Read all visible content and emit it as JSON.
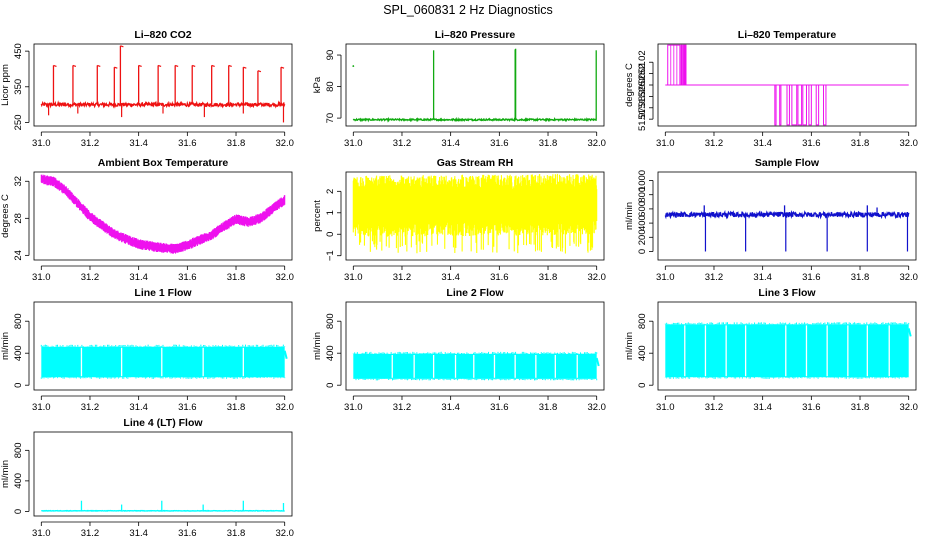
{
  "title": "SPL_060831  2 Hz Diagnostics",
  "chart_data": [
    {
      "id": "p1",
      "type": "line",
      "title": "Li–820 CO2",
      "ylabel": "Licor ppm",
      "color": "#ee1111",
      "xlim": [
        30.97,
        32.03
      ],
      "ylim": [
        240,
        470
      ],
      "xticks": [
        31.0,
        31.2,
        31.4,
        31.6,
        31.8,
        32.0
      ],
      "xtick_labels": [
        "31.0",
        "31.2",
        "31.4",
        "31.6",
        "31.8",
        "32.0"
      ],
      "yticks": [
        250,
        350,
        450
      ],
      "ytick_labels": [
        "250",
        "350",
        "450"
      ],
      "baseline": 300,
      "noise": 5,
      "spikes": [
        [
          31.05,
          410
        ],
        [
          31.13,
          410
        ],
        [
          31.23,
          410
        ],
        [
          31.3,
          405
        ],
        [
          31.325,
          465
        ],
        [
          31.4,
          410
        ],
        [
          31.48,
          410
        ],
        [
          31.55,
          410
        ],
        [
          31.62,
          410
        ],
        [
          31.7,
          410
        ],
        [
          31.77,
          410
        ],
        [
          31.83,
          405
        ],
        [
          31.89,
          395
        ],
        [
          31.985,
          405
        ]
      ],
      "dips": [
        [
          31.03,
          270
        ],
        [
          31.15,
          275
        ],
        [
          31.33,
          265
        ],
        [
          31.5,
          275
        ],
        [
          31.67,
          265
        ],
        [
          31.83,
          275
        ],
        [
          31.995,
          250
        ]
      ]
    },
    {
      "id": "p2",
      "type": "line",
      "title": "Li–820 Pressure",
      "ylabel": "kPa",
      "color": "#11aa11",
      "xlim": [
        30.97,
        32.03
      ],
      "ylim": [
        67.5,
        93.5
      ],
      "xticks": [
        31.0,
        31.2,
        31.4,
        31.6,
        31.8,
        32.0
      ],
      "xtick_labels": [
        "31.0",
        "31.2",
        "31.4",
        "31.6",
        "31.8",
        "32.0"
      ],
      "yticks": [
        70,
        80,
        90
      ],
      "ytick_labels": [
        "70",
        "80",
        "90"
      ],
      "baseline": 69.5,
      "noise": 0.25,
      "spikes": [
        [
          31.33,
          91.5
        ],
        [
          31.665,
          91.8
        ],
        [
          31.667,
          92.0
        ],
        [
          31.998,
          91.5
        ]
      ],
      "extra_points": [
        [
          31.0,
          86.5
        ]
      ]
    },
    {
      "id": "p3",
      "type": "step",
      "title": "Li–820 Temperature",
      "ylabel": "degrees C",
      "color": "#ee11ee",
      "xlim": [
        30.97,
        32.03
      ],
      "ylim": [
        51.964,
        52.036
      ],
      "xticks": [
        31.0,
        31.2,
        31.4,
        31.6,
        31.8,
        32.0
      ],
      "xtick_labels": [
        "31.0",
        "31.2",
        "31.4",
        "31.6",
        "31.8",
        "32.0"
      ],
      "yticks": [
        51.97,
        51.98,
        51.99,
        52.0,
        52.01,
        52.02
      ],
      "ytick_labels": [
        "51.97",
        "51.98",
        "51.99",
        "52.00",
        "52.01",
        "52.02"
      ],
      "level": 52.0,
      "high": 52.035,
      "low": 51.965,
      "high_pulses": [
        [
          31.01,
          31.06
        ],
        [
          31.065,
          31.07
        ],
        [
          31.075,
          31.085
        ]
      ],
      "low_pulses": [
        [
          31.45,
          31.455
        ],
        [
          31.47,
          31.475
        ],
        [
          31.5,
          31.51
        ],
        [
          31.52,
          31.54
        ],
        [
          31.545,
          31.56
        ],
        [
          31.565,
          31.58
        ],
        [
          31.59,
          31.6
        ],
        [
          31.62,
          31.63
        ],
        [
          31.65,
          31.66
        ]
      ]
    },
    {
      "id": "p4",
      "type": "band",
      "title": "Ambient Box Temperature",
      "ylabel": "degrees C",
      "color": "#ee11ee",
      "xlim": [
        30.97,
        32.03
      ],
      "ylim": [
        23.5,
        33.0
      ],
      "xticks": [
        31.0,
        31.2,
        31.4,
        31.6,
        31.8,
        32.0
      ],
      "xtick_labels": [
        "31.0",
        "31.2",
        "31.4",
        "31.6",
        "31.8",
        "32.0"
      ],
      "yticks": [
        24,
        28,
        32
      ],
      "ytick_labels": [
        "24",
        "28",
        "32"
      ],
      "knots": [
        [
          31.0,
          32.2
        ],
        [
          31.05,
          32.0
        ],
        [
          31.1,
          31.0
        ],
        [
          31.2,
          28.2
        ],
        [
          31.3,
          26.3
        ],
        [
          31.4,
          25.2
        ],
        [
          31.5,
          24.8
        ],
        [
          31.55,
          24.7
        ],
        [
          31.6,
          25.1
        ],
        [
          31.7,
          26.2
        ],
        [
          31.75,
          27.1
        ],
        [
          31.8,
          27.9
        ],
        [
          31.85,
          27.6
        ],
        [
          31.9,
          28.0
        ],
        [
          32.0,
          30.0
        ]
      ],
      "band_width": 1.0
    },
    {
      "id": "p5",
      "type": "band",
      "title": "Gas Stream RH",
      "ylabel": "percent",
      "color": "#ffff00",
      "xlim": [
        30.97,
        32.03
      ],
      "ylim": [
        -1.2,
        2.9
      ],
      "xticks": [
        31.0,
        31.2,
        31.4,
        31.6,
        31.8,
        32.0
      ],
      "xtick_labels": [
        "31.0",
        "31.2",
        "31.4",
        "31.6",
        "31.8",
        "32.0"
      ],
      "yticks": [
        -1,
        0,
        1,
        2
      ],
      "ytick_labels": [
        "−1",
        "0",
        "1",
        "2"
      ],
      "knots": [
        [
          31.0,
          1.3
        ],
        [
          32.0,
          1.4
        ]
      ],
      "band_width": 2.6,
      "band_low_tail": -0.9
    },
    {
      "id": "p6",
      "type": "line",
      "title": "Sample Flow",
      "ylabel": "ml/min",
      "color": "#1111cc",
      "xlim": [
        30.97,
        32.03
      ],
      "ylim": [
        -120,
        1120
      ],
      "xticks": [
        31.0,
        31.2,
        31.4,
        31.6,
        31.8,
        32.0
      ],
      "xtick_labels": [
        "31.0",
        "31.2",
        "31.4",
        "31.6",
        "31.8",
        "32.0"
      ],
      "yticks": [
        0,
        200,
        400,
        600,
        800,
        1000
      ],
      "ytick_labels": [
        "0",
        "200",
        "400",
        "600",
        "800",
        "1000"
      ],
      "baseline": 520,
      "noise": 35,
      "dips": [
        [
          31.165,
          0
        ],
        [
          31.33,
          0
        ],
        [
          31.495,
          0
        ],
        [
          31.665,
          0
        ],
        [
          31.83,
          0
        ],
        [
          31.995,
          0
        ]
      ],
      "spikes": [
        [
          31.16,
          650
        ],
        [
          31.49,
          650
        ],
        [
          31.83,
          650
        ],
        [
          31.87,
          620
        ]
      ]
    },
    {
      "id": "p7",
      "type": "flowband",
      "title": "Line 1 Flow",
      "ylabel": "ml/min",
      "color": "#00ffff",
      "xlim": [
        30.97,
        32.03
      ],
      "ylim": [
        -60,
        1040
      ],
      "xticks": [
        31.0,
        31.2,
        31.4,
        31.6,
        31.8,
        32.0
      ],
      "xtick_labels": [
        "31.0",
        "31.2",
        "31.4",
        "31.6",
        "31.8",
        "32.0"
      ],
      "yticks": [
        0,
        400,
        800
      ],
      "ytick_labels": [
        "0",
        "400",
        "800"
      ],
      "top": 480,
      "bottom": 100,
      "x0": 31.0,
      "x1": 32.0,
      "gaps": [
        31.165,
        31.33,
        31.495,
        31.665,
        31.83
      ]
    },
    {
      "id": "p8",
      "type": "flowband",
      "title": "Line 2 Flow",
      "ylabel": "ml/min",
      "color": "#00ffff",
      "xlim": [
        30.97,
        32.03
      ],
      "ylim": [
        -60,
        1040
      ],
      "xticks": [
        31.0,
        31.2,
        31.4,
        31.6,
        31.8,
        32.0
      ],
      "xtick_labels": [
        "31.0",
        "31.2",
        "31.4",
        "31.6",
        "31.8",
        "32.0"
      ],
      "yticks": [
        0,
        400,
        800
      ],
      "ytick_labels": [
        "0",
        "400",
        "800"
      ],
      "top": 390,
      "bottom": 80,
      "x0": 31.0,
      "x1": 32.0,
      "gaps": [
        31.16,
        31.25,
        31.33,
        31.42,
        31.495,
        31.58,
        31.665,
        31.75,
        31.83,
        31.92
      ]
    },
    {
      "id": "p9",
      "type": "flowband",
      "title": "Line 3 Flow",
      "ylabel": "ml/min",
      "color": "#00ffff",
      "xlim": [
        30.97,
        32.03
      ],
      "ylim": [
        -60,
        1040
      ],
      "xticks": [
        31.0,
        31.2,
        31.4,
        31.6,
        31.8,
        32.0
      ],
      "xtick_labels": [
        "31.0",
        "31.2",
        "31.4",
        "31.6",
        "31.8",
        "32.0"
      ],
      "yticks": [
        0,
        400,
        800
      ],
      "ytick_labels": [
        "0",
        "400",
        "800"
      ],
      "top": 760,
      "bottom": 100,
      "x0": 31.0,
      "x1": 32.0,
      "gaps": [
        31.08,
        31.165,
        31.25,
        31.33,
        31.495,
        31.58,
        31.665,
        31.75,
        31.83,
        31.92
      ]
    },
    {
      "id": "p10",
      "type": "line",
      "title": "Line 4 (LT) Flow",
      "ylabel": "ml/min",
      "color": "#00ffff",
      "xlim": [
        30.97,
        32.03
      ],
      "ylim": [
        -60,
        1040
      ],
      "xticks": [
        31.0,
        31.2,
        31.4,
        31.6,
        31.8,
        32.0
      ],
      "xtick_labels": [
        "31.0",
        "31.2",
        "31.4",
        "31.6",
        "31.8",
        "32.0"
      ],
      "yticks": [
        0,
        400,
        800
      ],
      "ytick_labels": [
        "0",
        "400",
        "800"
      ],
      "baseline": 8,
      "noise": 3,
      "spikes": [
        [
          31.165,
          140
        ],
        [
          31.33,
          90
        ],
        [
          31.495,
          140
        ],
        [
          31.665,
          90
        ],
        [
          31.83,
          140
        ],
        [
          31.995,
          110
        ]
      ]
    }
  ]
}
